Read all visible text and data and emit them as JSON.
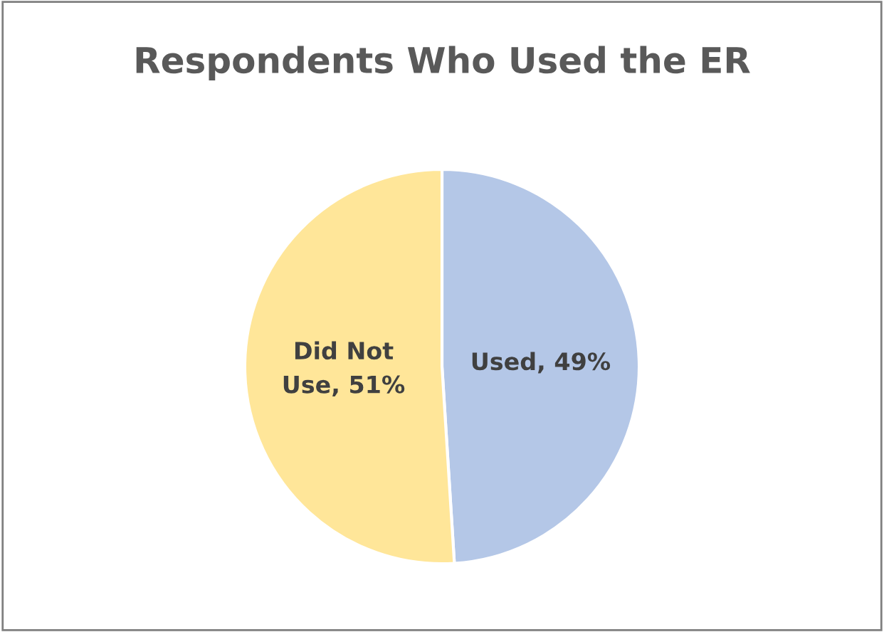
{
  "chart_data": {
    "type": "pie",
    "title": "Respondents Who Used the ER",
    "categories": [
      null,
      null
    ],
    "values": [
      49,
      51
    ],
    "value_labels": [
      "Used, 49%",
      "Did Not\nUse, 51%"
    ],
    "colors": [
      "#b4c7e7",
      "#ffe699"
    ]
  }
}
